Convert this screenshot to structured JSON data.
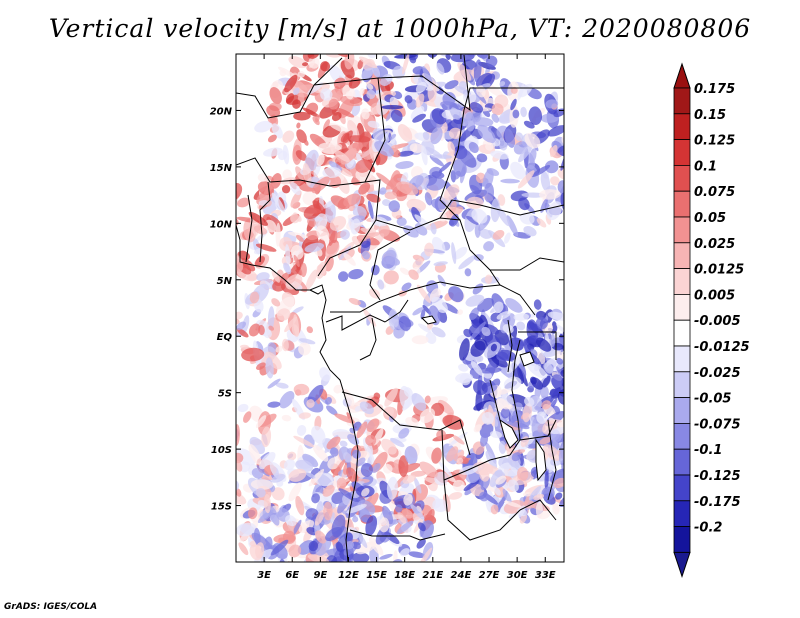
{
  "title": "Vertical velocity [m/s] at 1000hPa, VT: 2020080806",
  "credit": "GrADS: IGES/COLA",
  "map": {
    "lon_range": [
      0,
      35
    ],
    "lat_range": [
      -20,
      25
    ],
    "lat_ticks": [
      {
        "value": 20,
        "label": "20N"
      },
      {
        "value": 15,
        "label": "15N"
      },
      {
        "value": 10,
        "label": "10N"
      },
      {
        "value": 5,
        "label": "5N"
      },
      {
        "value": 0,
        "label": "EQ"
      },
      {
        "value": -5,
        "label": "5S"
      },
      {
        "value": -10,
        "label": "10S"
      },
      {
        "value": -15,
        "label": "15S"
      }
    ],
    "lon_ticks": [
      {
        "value": 3,
        "label": "3E"
      },
      {
        "value": 6,
        "label": "6E"
      },
      {
        "value": 9,
        "label": "9E"
      },
      {
        "value": 12,
        "label": "12E"
      },
      {
        "value": 15,
        "label": "15E"
      },
      {
        "value": 18,
        "label": "18E"
      },
      {
        "value": 21,
        "label": "21E"
      },
      {
        "value": 24,
        "label": "24E"
      },
      {
        "value": 27,
        "label": "27E"
      },
      {
        "value": 30,
        "label": "30E"
      },
      {
        "value": 33,
        "label": "33E"
      }
    ]
  },
  "colorbar": {
    "bins": [
      {
        "color": "#a01818",
        "label": "0.175"
      },
      {
        "color": "#be2020",
        "label": "0.15"
      },
      {
        "color": "#d43434",
        "label": "0.125"
      },
      {
        "color": "#e05050",
        "label": "0.1"
      },
      {
        "color": "#ea7070",
        "label": "0.075"
      },
      {
        "color": "#f29292",
        "label": "0.05"
      },
      {
        "color": "#f7b4b4",
        "label": "0.025"
      },
      {
        "color": "#fbd4d4",
        "label": "0.0125"
      },
      {
        "color": "#fdeeee",
        "label": "0.005"
      },
      {
        "color": "#ffffff",
        "label": "-0.005"
      },
      {
        "color": "#e8e8fc",
        "label": "-0.0125"
      },
      {
        "color": "#ccccf6",
        "label": "-0.025"
      },
      {
        "color": "#aaaaee",
        "label": "-0.05"
      },
      {
        "color": "#8888e4",
        "label": "-0.075"
      },
      {
        "color": "#6666d8",
        "label": "-0.1"
      },
      {
        "color": "#4444ca",
        "label": "-0.125"
      },
      {
        "color": "#2626b6",
        "label": "-0.175"
      },
      {
        "color": "#14149c",
        "label": "-0.2"
      }
    ],
    "top_color": "#9a1010",
    "bottom_color": "#1a1a90"
  }
}
